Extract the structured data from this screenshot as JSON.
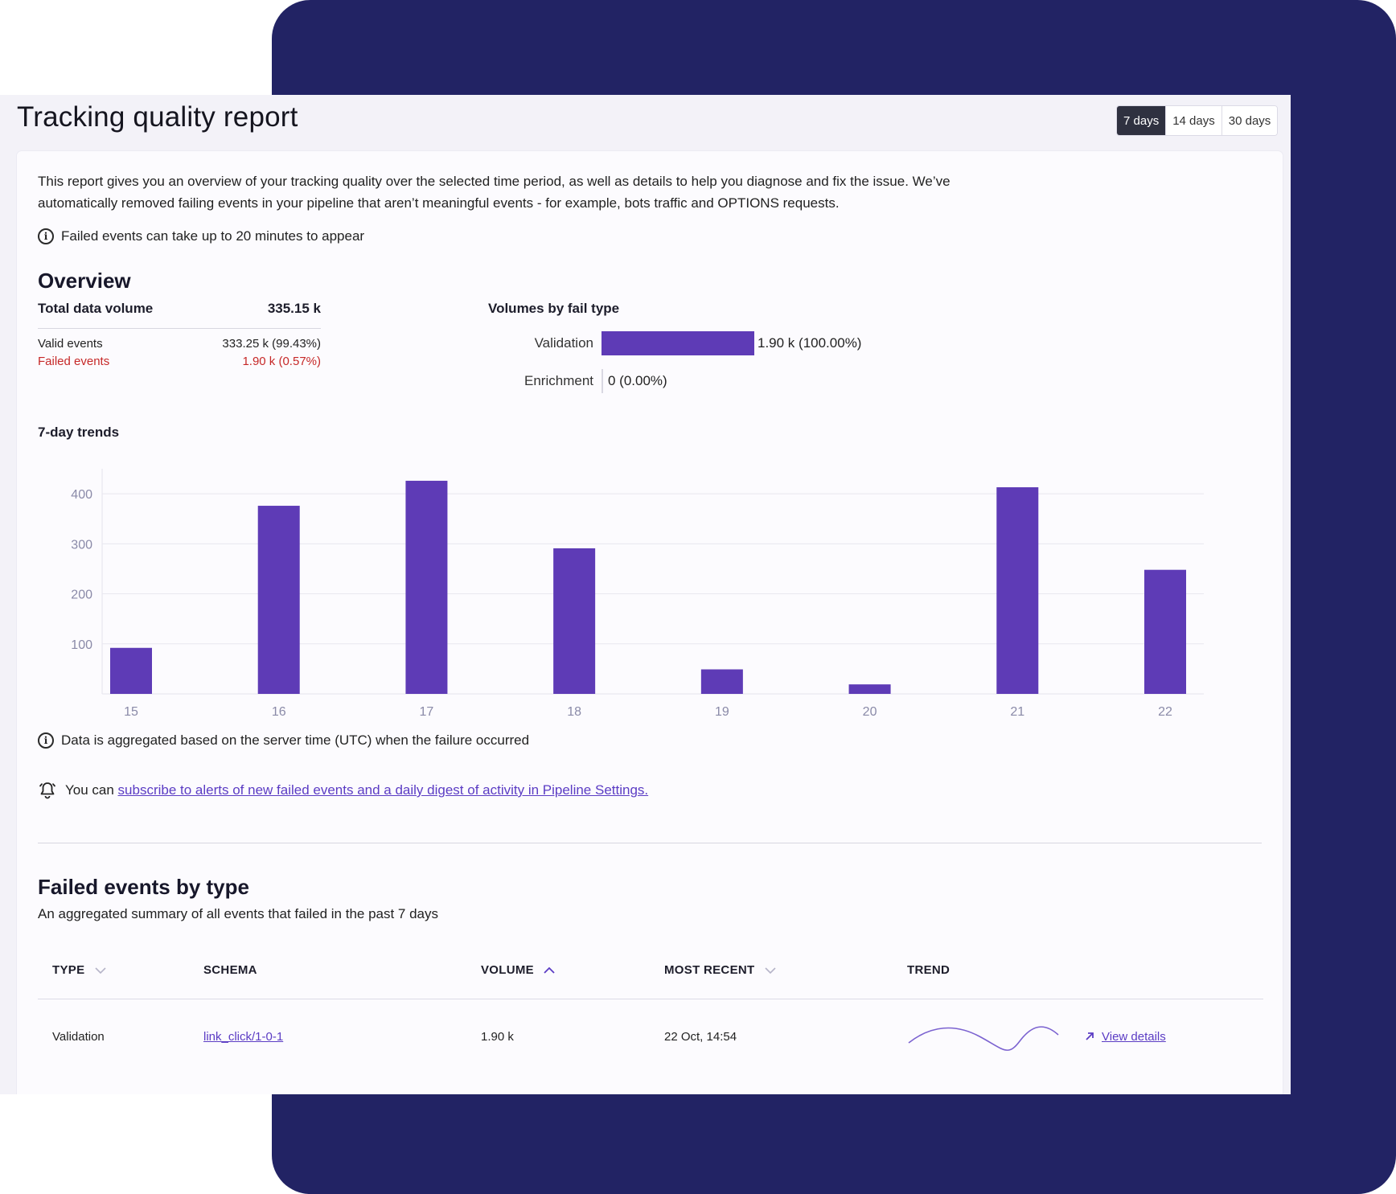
{
  "header": {
    "title": "Tracking quality report",
    "ranges": [
      "7 days",
      "14 days",
      "30 days"
    ],
    "active_range": "7 days"
  },
  "intro": {
    "text": "This report gives you an overview of your tracking quality over the selected time period, as well as details to help you diagnose and fix the issue. We’ve automatically removed failing events in your pipeline that aren’t meaningful events - for example, bots traffic and OPTIONS requests.",
    "delay_note": "Failed events can take up to 20 minutes to appear"
  },
  "overview": {
    "heading": "Overview",
    "total_label": "Total data volume",
    "total_value": "335.15 k",
    "valid_label": "Valid events",
    "valid_value": "333.25 k (99.43%)",
    "failed_label": "Failed events",
    "failed_value": "1.90 k (0.57%)"
  },
  "fail_types": {
    "heading": "Volumes by fail type",
    "items": [
      {
        "label": "Validation",
        "value": "1.90 k (100.00%)",
        "share": 1.0
      },
      {
        "label": "Enrichment",
        "value": "0 (0.00%)",
        "share": 0.0
      }
    ]
  },
  "trends": {
    "heading": "7-day trends"
  },
  "chart_data": {
    "type": "bar",
    "categories": [
      "15",
      "16",
      "17",
      "18",
      "19",
      "20",
      "21",
      "22"
    ],
    "values": [
      92,
      376,
      426,
      291,
      49,
      19,
      413,
      248
    ],
    "yticks": [
      100,
      200,
      300,
      400
    ],
    "ylim": [
      0,
      450
    ],
    "color": "#5e3bb6",
    "grid": true
  },
  "notes": {
    "aggregation": "Data is aggregated based on the server time (UTC) when the failure occurred",
    "alerts_prefix": "You can ",
    "alerts_link": "subscribe to alerts of new failed events and a daily digest of activity in Pipeline Settings."
  },
  "failed_by_type": {
    "heading": "Failed events by type",
    "subheading": "An aggregated summary of all events that failed in the past 7 days",
    "columns": [
      "TYPE",
      "SCHEMA",
      "VOLUME",
      "MOST RECENT",
      "TREND"
    ],
    "rows": [
      {
        "type": "Validation",
        "schema": "link_click/1-0-1",
        "volume": "1.90 k",
        "most_recent": "22 Oct, 14:54",
        "action": "View details"
      }
    ]
  },
  "colors": {
    "brand_navy": "#222364",
    "bar_purple": "#5e3bb6",
    "link_purple": "#5b3cc4",
    "failed_red": "#c62828",
    "axis_text": "#8a8aa8"
  },
  "icons": [
    "info-icon",
    "bell-icon",
    "chevron-down-icon",
    "chevron-up-icon",
    "arrow-up-right-icon"
  ]
}
